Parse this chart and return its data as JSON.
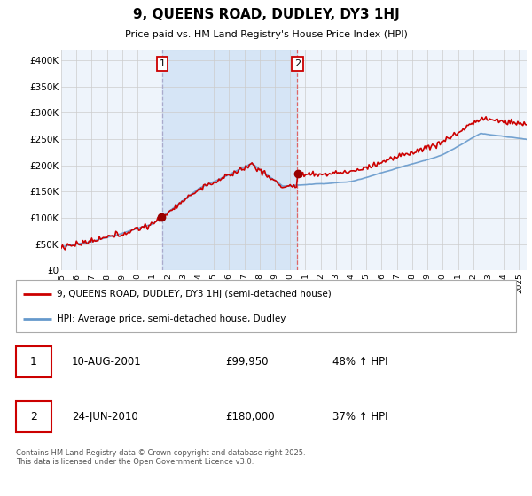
{
  "title": "9, QUEENS ROAD, DUDLEY, DY3 1HJ",
  "subtitle": "Price paid vs. HM Land Registry's House Price Index (HPI)",
  "legend_line1": "9, QUEENS ROAD, DUDLEY, DY3 1HJ (semi-detached house)",
  "legend_line2": "HPI: Average price, semi-detached house, Dudley",
  "footer": "Contains HM Land Registry data © Crown copyright and database right 2025.\nThis data is licensed under the Open Government Licence v3.0.",
  "sale1_label": "1",
  "sale1_date": "10-AUG-2001",
  "sale1_price": "£99,950",
  "sale1_hpi": "48% ↑ HPI",
  "sale2_label": "2",
  "sale2_date": "24-JUN-2010",
  "sale2_price": "£180,000",
  "sale2_hpi": "37% ↑ HPI",
  "ylim": [
    0,
    420000
  ],
  "yticks": [
    0,
    50000,
    100000,
    150000,
    200000,
    250000,
    300000,
    350000,
    400000
  ],
  "ytick_labels": [
    "£0",
    "£50K",
    "£100K",
    "£150K",
    "£200K",
    "£250K",
    "£300K",
    "£350K",
    "£400K"
  ],
  "line1_color": "#cc0000",
  "line2_color": "#6699cc",
  "sale_marker_color": "#990000",
  "vline1_color": "#aaaacc",
  "vline2_color": "#dd6666",
  "shade_color": "#ddeeff",
  "grid_color": "#cccccc",
  "bg_color": "#eef4fb",
  "sale1_year": 2001.62,
  "sale2_year": 2010.48
}
